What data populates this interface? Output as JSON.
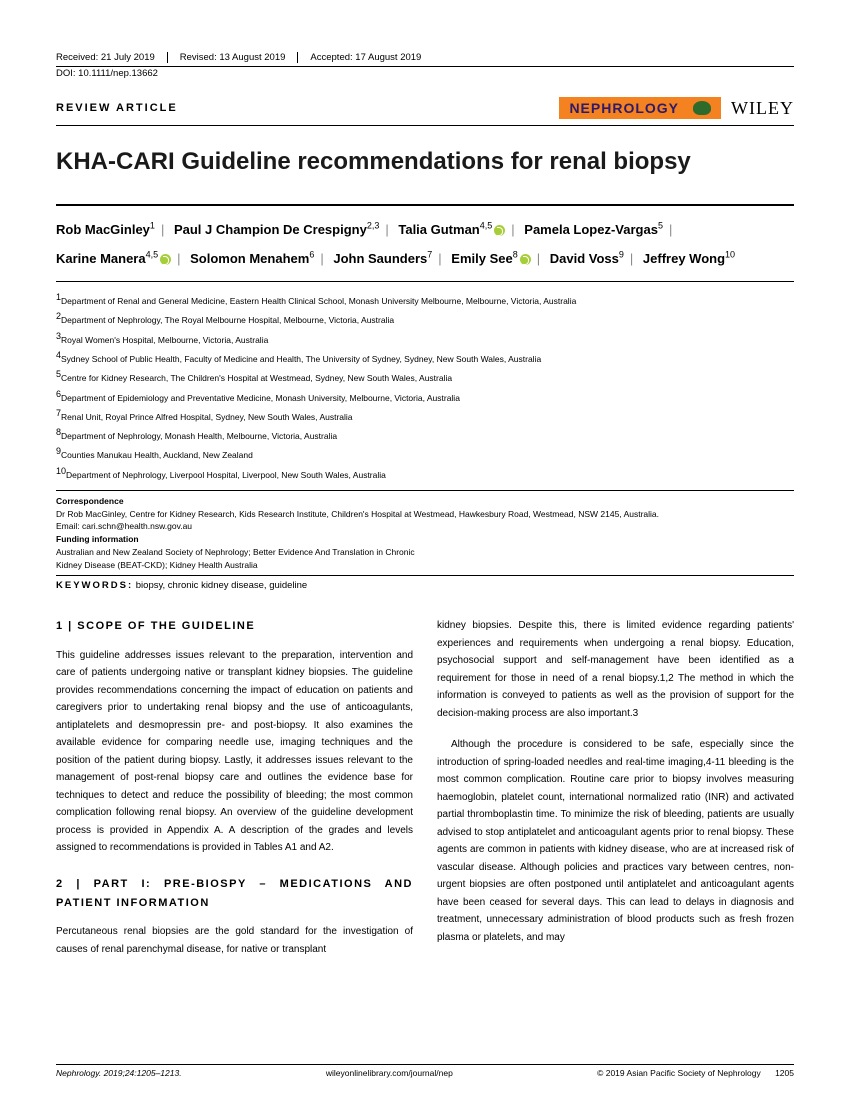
{
  "meta": {
    "received": "Received: 21 July 2019",
    "revised": "Revised: 13 August 2019",
    "accepted": "Accepted: 17 August 2019",
    "doi": "DOI: 10.1111/nep.13662"
  },
  "header": {
    "review_label": "REVIEW ARTICLE",
    "journal_badge": "NEPHROLOGY",
    "publisher": "WILEY"
  },
  "title": "KHA-CARI Guideline recommendations for renal biopsy",
  "authors": [
    {
      "name": "Rob MacGinley",
      "aff": "1",
      "orcid": false
    },
    {
      "name": "Paul J Champion De Crespigny",
      "aff": "2,3",
      "orcid": false
    },
    {
      "name": "Talia Gutman",
      "aff": "4,5",
      "orcid": true
    },
    {
      "name": "Pamela Lopez-Vargas",
      "aff": "5",
      "orcid": false
    },
    {
      "name": "Karine Manera",
      "aff": "4,5",
      "orcid": true
    },
    {
      "name": "Solomon Menahem",
      "aff": "6",
      "orcid": false
    },
    {
      "name": "John Saunders",
      "aff": "7",
      "orcid": false
    },
    {
      "name": "Emily See",
      "aff": "8",
      "orcid": true
    },
    {
      "name": "David Voss",
      "aff": "9",
      "orcid": false
    },
    {
      "name": "Jeffrey Wong",
      "aff": "10",
      "orcid": false
    }
  ],
  "affiliations": [
    "Department of Renal and General Medicine, Eastern Health Clinical School, Monash University Melbourne, Melbourne, Victoria, Australia",
    "Department of Nephrology, The Royal Melbourne Hospital, Melbourne, Victoria, Australia",
    "Royal Women's Hospital, Melbourne, Victoria, Australia",
    "Sydney School of Public Health, Faculty of Medicine and Health, The University of Sydney, Sydney, New South Wales, Australia",
    "Centre for Kidney Research, The Children's Hospital at Westmead, Sydney, New South Wales, Australia",
    "Department of Epidemiology and Preventative Medicine, Monash University, Melbourne, Victoria, Australia",
    "Renal Unit, Royal Prince Alfred Hospital, Sydney, New South Wales, Australia",
    "Department of Nephrology, Monash Health, Melbourne, Victoria, Australia",
    "Counties Manukau Health, Auckland, New Zealand",
    "Department of Nephrology, Liverpool Hospital, Liverpool, New South Wales, Australia"
  ],
  "correspondence": {
    "h1": "Correspondence",
    "text": "Dr Rob MacGinley, Centre for Kidney Research, Kids Research Institute, Children's Hospital at Westmead, Hawkesbury Road, Westmead, NSW 2145, Australia.",
    "email": "Email: cari.schn@health.nsw.gov.au",
    "h2": "Funding information",
    "funding": "Australian and New Zealand Society of Nephrology; Better Evidence And Translation in Chronic Kidney Disease (BEAT-CKD); Kidney Health Australia"
  },
  "keywords": {
    "label": "KEYWORDS:",
    "text": "biopsy, chronic kidney disease, guideline"
  },
  "body": {
    "s1_head": "1  |  SCOPE OF THE GUIDELINE",
    "s1_p1": "This guideline addresses issues relevant to the preparation, intervention and care of patients undergoing native or transplant kidney biopsies. The guideline provides recommendations concerning the impact of education on patients and caregivers prior to undertaking renal biopsy and the use of anticoagulants, antiplatelets and desmopressin pre- and post-biopsy. It also examines the available evidence for comparing needle use, imaging techniques and the position of the patient during biopsy. Lastly, it addresses issues relevant to the management of post-renal biopsy care and outlines the evidence base for techniques to detect and reduce the possibility of bleeding; the most common complication following renal biopsy. An overview of the guideline development process is provided in Appendix A. A description of the grades and levels assigned to recommendations is provided in Tables A1 and A2.",
    "s2_head": "2  |  PART I: PRE-BIOSPY – MEDICATIONS AND PATIENT INFORMATION",
    "s2_p1": "Percutaneous renal biopsies are the gold standard for the investigation of causes of renal parenchymal disease, for native or transplant",
    "c2_p1": "kidney biopsies. Despite this, there is limited evidence regarding patients' experiences and requirements when undergoing a renal biopsy. Education, psychosocial support and self-management have been identified as a requirement for those in need of a renal biopsy.1,2 The method in which the information is conveyed to patients as well as the provision of support for the decision-making process are also important.3",
    "c2_p2": "Although the procedure is considered to be safe, especially since the introduction of spring-loaded needles and real-time imaging,4-11 bleeding is the most common complication. Routine care prior to biopsy involves measuring haemoglobin, platelet count, international normalized ratio (INR) and activated partial thromboplastin time. To minimize the risk of bleeding, patients are usually advised to stop antiplatelet and anticoagulant agents prior to renal biopsy. These agents are common in patients with kidney disease, who are at increased risk of vascular disease. Although policies and practices vary between centres, non-urgent biopsies are often postponed until antiplatelet and anticoagulant agents have been ceased for several days. This can lead to delays in diagnosis and treatment, unnecessary administration of blood products such as fresh frozen plasma or platelets, and may"
  },
  "footer": {
    "left": "Nephrology. 2019;24:1205–1213.",
    "center": "wileyonlinelibrary.com/journal/nep",
    "right": "© 2019 Asian Pacific Society of Nephrology",
    "page": "1205"
  },
  "style": {
    "accent_orange": "#f58220",
    "accent_green": "#a6ce39",
    "text_color": "#000000",
    "page_bg": "#ffffff"
  }
}
